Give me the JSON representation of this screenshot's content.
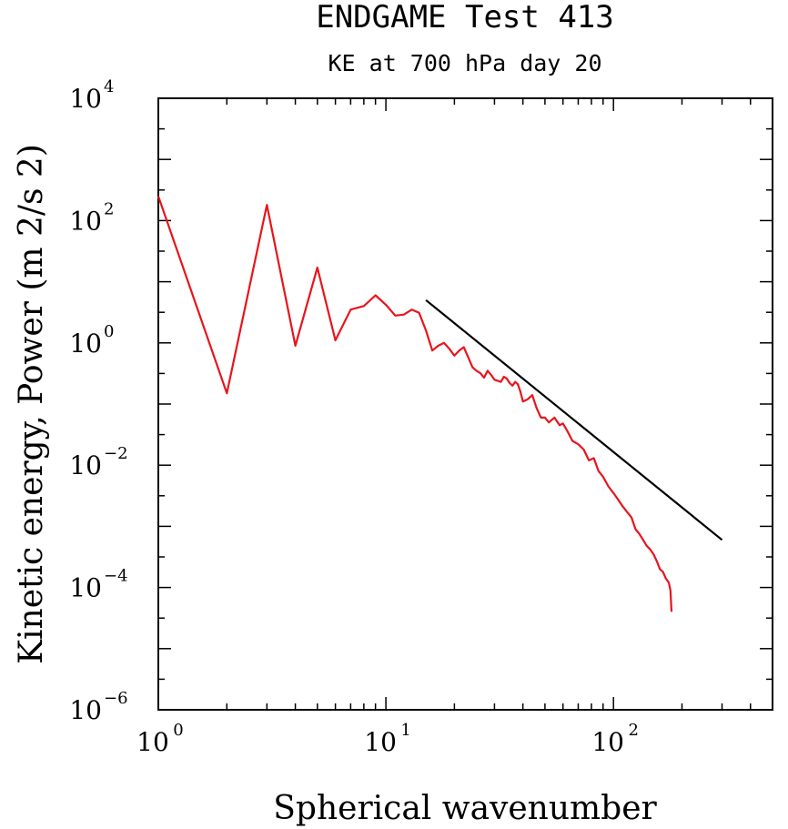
{
  "chart_data": {
    "type": "line",
    "title": "ENDGAME Test 413",
    "subtitle": "KE at 700 hPa day 20",
    "xlabel": "Spherical wavenumber",
    "ylabel": "Kinetic energy, Power (m 2/s 2)",
    "xscale": "log",
    "yscale": "log",
    "xlim": [
      1,
      500
    ],
    "ylim": [
      1e-06,
      10000.0
    ],
    "grid": false,
    "x_tick_labels": [
      {
        "base": "10",
        "exp": "0"
      },
      {
        "base": "10",
        "exp": "1"
      },
      {
        "base": "10",
        "exp": "2"
      }
    ],
    "y_tick_labels": [
      {
        "base": "10",
        "exp": "4"
      },
      {
        "base": "10",
        "exp": "2"
      },
      {
        "base": "10",
        "exp": "0"
      },
      {
        "base": "10",
        "exp": "−2"
      },
      {
        "base": "10",
        "exp": "−4"
      },
      {
        "base": "10",
        "exp": "−6"
      }
    ],
    "series": [
      {
        "color": "#e8141c",
        "x": [
          1,
          2,
          3,
          4,
          5,
          6,
          7,
          8,
          9,
          10,
          11,
          12,
          13,
          14,
          15,
          16,
          17,
          18,
          19,
          20,
          21,
          22,
          23,
          24,
          25,
          26,
          27,
          28,
          29,
          30,
          31,
          32,
          33,
          34,
          35,
          36,
          37,
          38,
          39,
          40,
          42,
          44,
          46,
          48,
          50,
          52,
          55,
          58,
          60,
          63,
          66,
          70,
          74,
          78,
          82,
          86,
          90,
          95,
          100,
          105,
          110,
          115,
          120,
          125,
          130,
          135,
          140,
          145,
          150,
          155,
          160,
          165,
          170,
          175,
          178,
          180
        ],
        "y": [
          250,
          0.15,
          180,
          0.9,
          17,
          1.1,
          3.5,
          4,
          6,
          4.2,
          2.8,
          2.9,
          3.5,
          3.1,
          1.6,
          0.75,
          0.9,
          1.0,
          0.8,
          0.62,
          0.75,
          0.85,
          0.58,
          0.4,
          0.35,
          0.32,
          0.27,
          0.35,
          0.3,
          0.25,
          0.24,
          0.23,
          0.28,
          0.26,
          0.22,
          0.2,
          0.23,
          0.21,
          0.16,
          0.11,
          0.12,
          0.14,
          0.085,
          0.06,
          0.06,
          0.05,
          0.06,
          0.045,
          0.048,
          0.035,
          0.025,
          0.022,
          0.018,
          0.012,
          0.013,
          0.008,
          0.0065,
          0.0045,
          0.0035,
          0.0027,
          0.0021,
          0.0017,
          0.0014,
          0.0009,
          0.00075,
          0.0006,
          0.00048,
          0.00042,
          0.00035,
          0.00027,
          0.0002,
          0.00018,
          0.00014,
          0.00012,
          9e-05,
          4e-05
        ]
      },
      {
        "color": "#000000",
        "x": [
          15,
          300
        ],
        "y": [
          5,
          0.0006
        ]
      }
    ]
  }
}
